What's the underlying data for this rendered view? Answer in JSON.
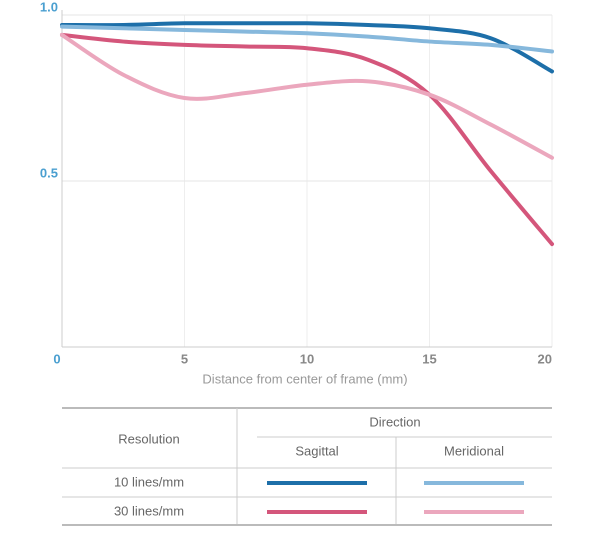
{
  "chart_data": {
    "type": "line",
    "x_label": "Distance from center of frame (mm)",
    "x": [
      0,
      2.5,
      5,
      7.5,
      10,
      12.5,
      15,
      17.5,
      20
    ],
    "xlim": [
      0,
      20
    ],
    "xticks": [
      0,
      5,
      10,
      15,
      20
    ],
    "ylim": [
      0,
      1
    ],
    "yticks": [
      {
        "value": 0.5,
        "label": "0.5"
      },
      {
        "value": 1,
        "label": "1.0"
      }
    ],
    "grid": true,
    "series": [
      {
        "color": "#1d6fa9",
        "values": [
          0.97,
          0.97,
          0.975,
          0.975,
          0.975,
          0.97,
          0.96,
          0.93,
          0.83
        ]
      },
      {
        "color": "#86b8dc",
        "values": [
          0.965,
          0.96,
          0.955,
          0.95,
          0.945,
          0.935,
          0.92,
          0.91,
          0.89
        ]
      },
      {
        "color": "#d4567b",
        "values": [
          0.94,
          0.92,
          0.91,
          0.905,
          0.9,
          0.865,
          0.76,
          0.53,
          0.31
        ]
      },
      {
        "color": "#eba7bd",
        "values": [
          0.94,
          0.82,
          0.75,
          0.765,
          0.79,
          0.8,
          0.76,
          0.67,
          0.57
        ]
      }
    ],
    "legend_table": {
      "row_header": "Resolution",
      "column_group": "Direction",
      "columns": [
        "Sagittal",
        "Meridional"
      ],
      "rows": [
        "10 lines/mm",
        "30 lines/mm"
      ]
    }
  }
}
